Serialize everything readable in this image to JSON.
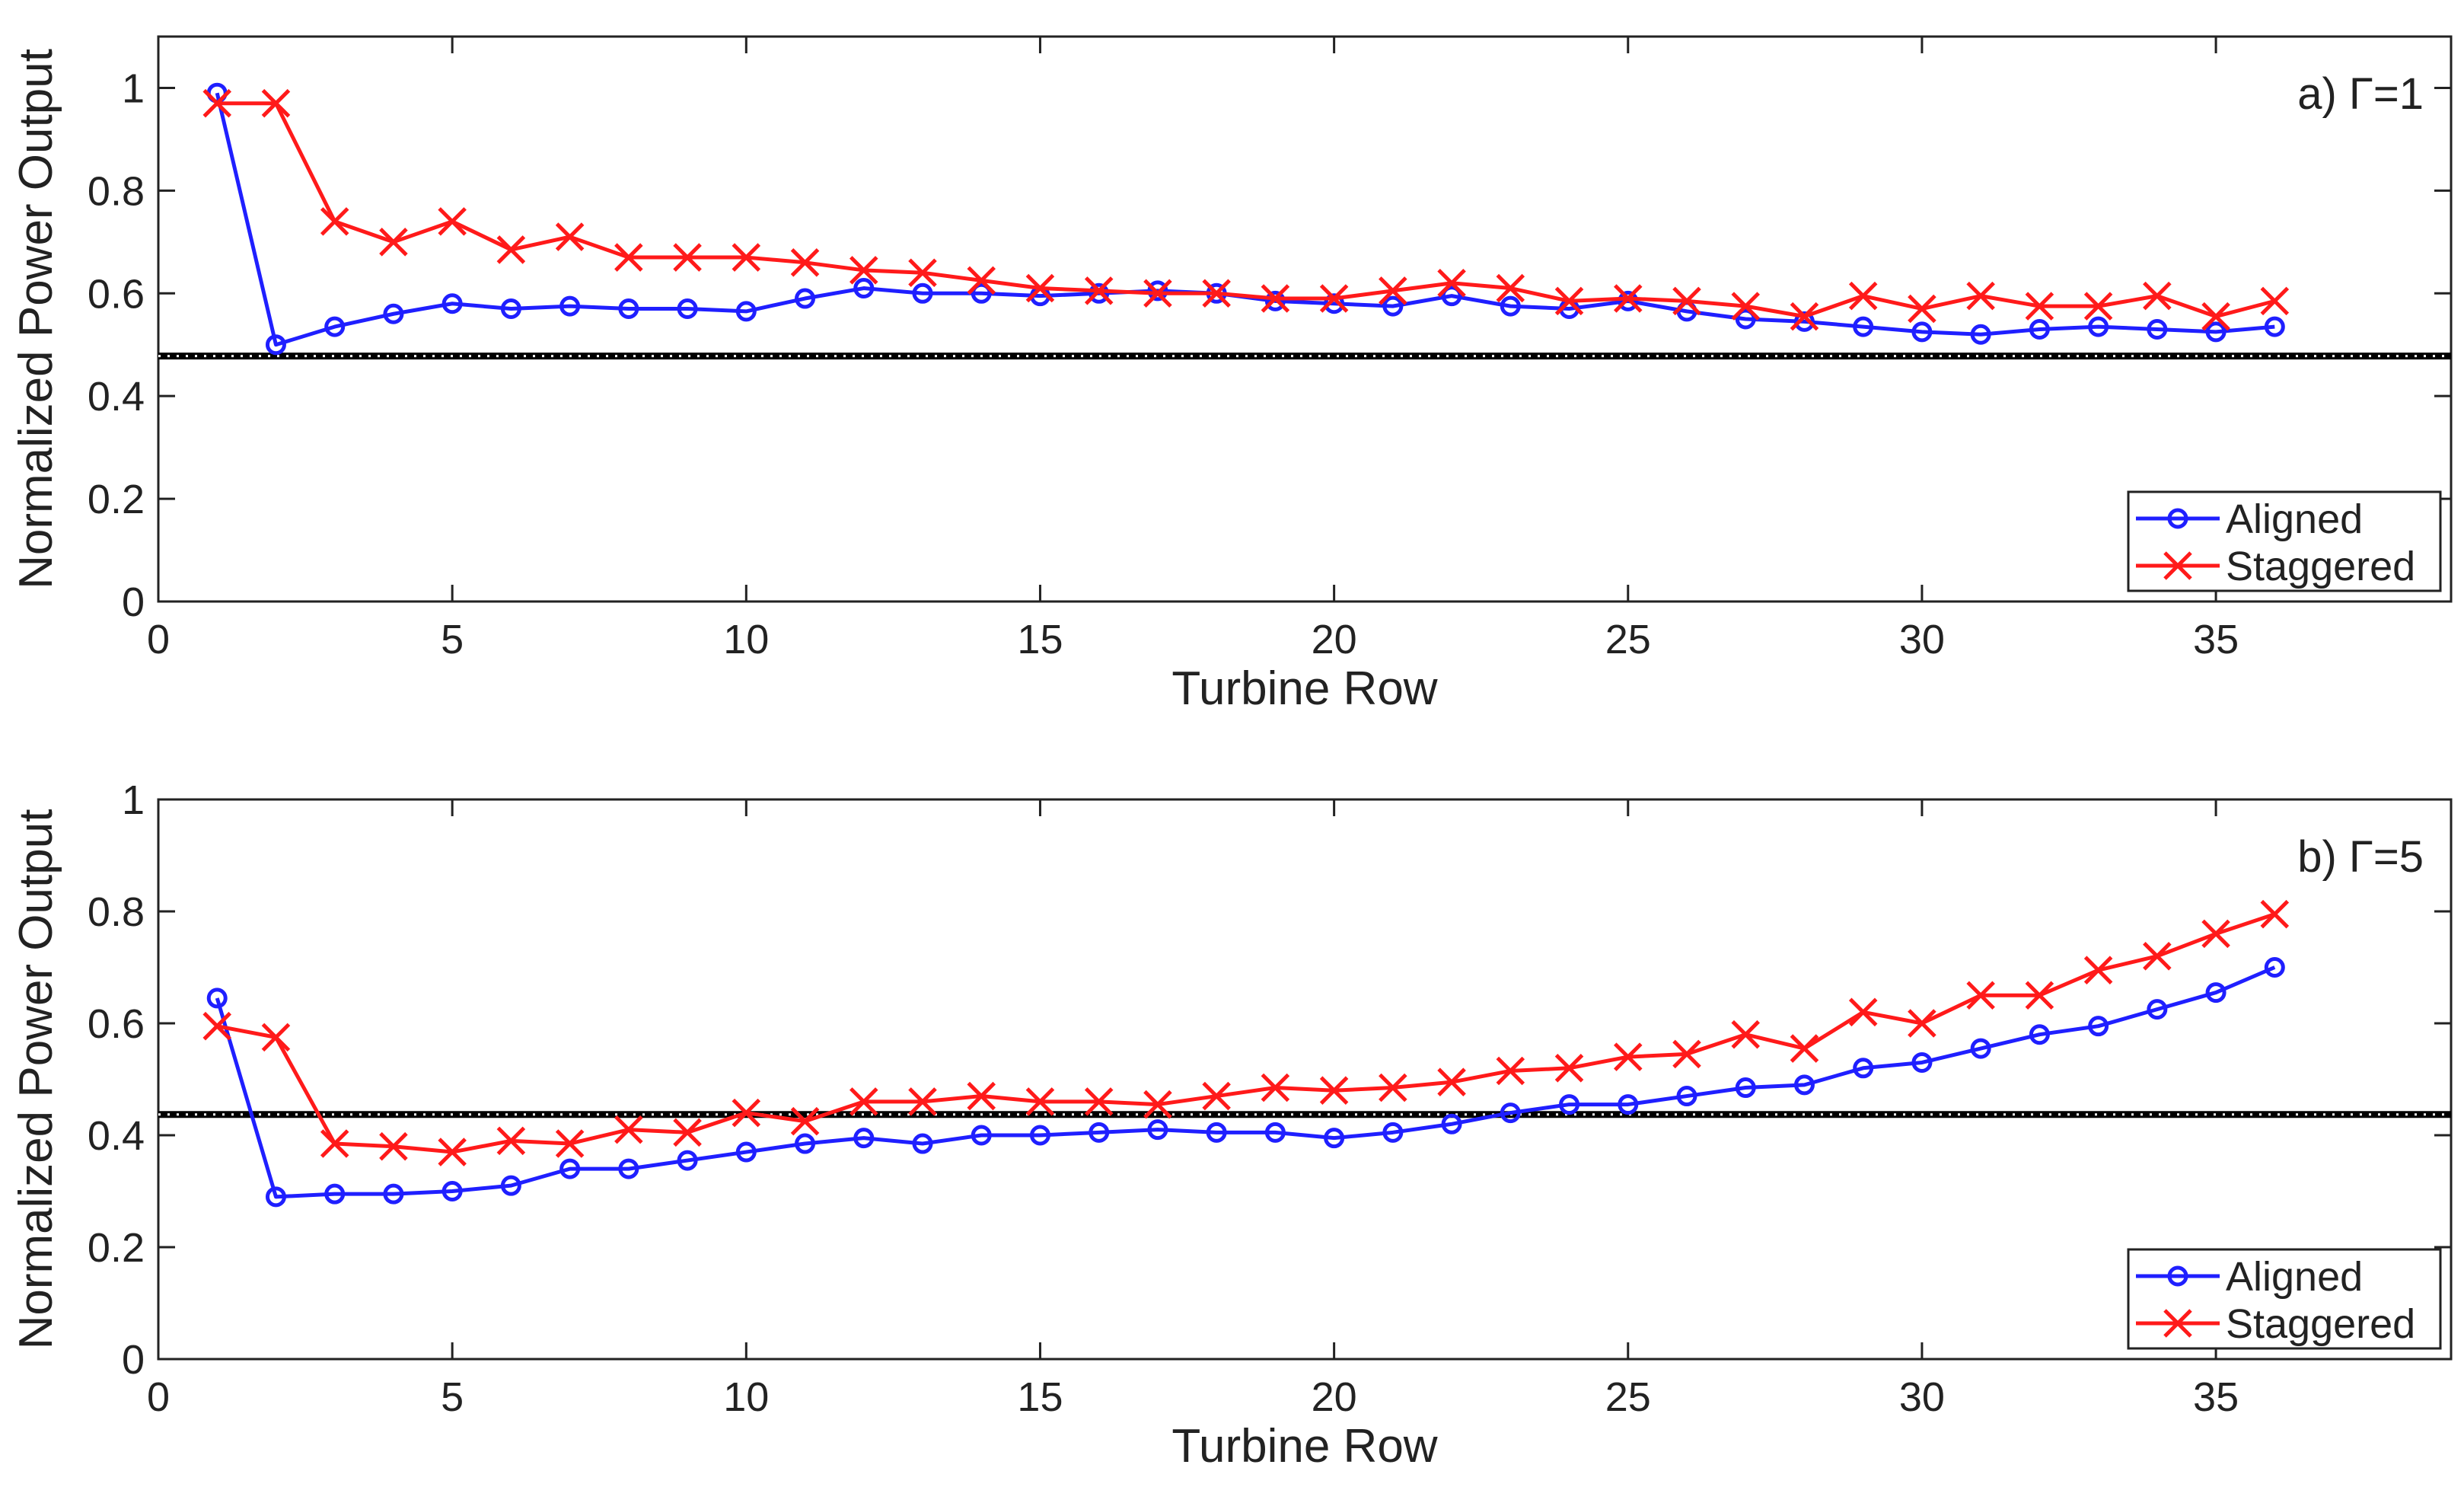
{
  "colors": {
    "aligned": "#1f1fff",
    "staggered": "#ff1a1a",
    "reference": "#000000",
    "axis": "#222222"
  },
  "chart_data": [
    {
      "type": "line",
      "annotation": "a) Γ=1",
      "xlabel": "Turbine Row",
      "ylabel": "Normalized Power Output",
      "xlim": [
        0,
        39
      ],
      "ylim": [
        0,
        1.1
      ],
      "xticks": [
        0,
        5,
        10,
        15,
        20,
        25,
        30,
        35
      ],
      "yticks": [
        0,
        0.2,
        0.4,
        0.6,
        0.8,
        1
      ],
      "tick_labels_y": [
        "0",
        "0.2",
        "0.4",
        "0.6",
        "0.8",
        "1"
      ],
      "tick_labels_x": [
        "0",
        "5",
        "10",
        "15",
        "20",
        "25",
        "30",
        "35"
      ],
      "reference_line": 0.478,
      "legend": {
        "position": "bottom-right",
        "entries": [
          "Aligned",
          "Staggered"
        ]
      },
      "x": [
        1,
        2,
        3,
        4,
        5,
        6,
        7,
        8,
        9,
        10,
        11,
        12,
        13,
        14,
        15,
        16,
        17,
        18,
        19,
        20,
        21,
        22,
        23,
        24,
        25,
        26,
        27,
        28,
        29,
        30,
        31,
        32,
        33,
        34,
        35,
        36
      ],
      "series": [
        {
          "name": "Aligned",
          "marker": "circle",
          "values": [
            0.99,
            0.5,
            0.535,
            0.56,
            0.58,
            0.57,
            0.575,
            0.57,
            0.57,
            0.565,
            0.59,
            0.61,
            0.6,
            0.6,
            0.595,
            0.6,
            0.605,
            0.6,
            0.585,
            0.58,
            0.575,
            0.595,
            0.575,
            0.57,
            0.585,
            0.565,
            0.55,
            0.545,
            0.535,
            0.525,
            0.52,
            0.53,
            0.535,
            0.53,
            0.525,
            0.535
          ]
        },
        {
          "name": "Staggered",
          "marker": "x",
          "values": [
            0.97,
            0.97,
            0.74,
            0.7,
            0.74,
            0.685,
            0.71,
            0.67,
            0.67,
            0.67,
            0.66,
            0.645,
            0.64,
            0.625,
            0.61,
            0.605,
            0.6,
            0.6,
            0.59,
            0.59,
            0.605,
            0.62,
            0.61,
            0.585,
            0.59,
            0.585,
            0.575,
            0.555,
            0.595,
            0.57,
            0.595,
            0.575,
            0.575,
            0.595,
            0.555,
            0.585
          ]
        }
      ]
    },
    {
      "type": "line",
      "annotation": "b) Γ=5",
      "xlabel": "Turbine Row",
      "ylabel": "Normalized Power Output",
      "xlim": [
        0,
        39
      ],
      "ylim": [
        0,
        1
      ],
      "xticks": [
        0,
        5,
        10,
        15,
        20,
        25,
        30,
        35
      ],
      "yticks": [
        0,
        0.2,
        0.4,
        0.6,
        0.8,
        1
      ],
      "tick_labels_y": [
        "0",
        "0.2",
        "0.4",
        "0.6",
        "0.8",
        "1"
      ],
      "tick_labels_x": [
        "0",
        "5",
        "10",
        "15",
        "20",
        "25",
        "30",
        "35"
      ],
      "reference_line": 0.437,
      "legend": {
        "position": "bottom-right",
        "entries": [
          "Aligned",
          "Staggered"
        ]
      },
      "x": [
        1,
        2,
        3,
        4,
        5,
        6,
        7,
        8,
        9,
        10,
        11,
        12,
        13,
        14,
        15,
        16,
        17,
        18,
        19,
        20,
        21,
        22,
        23,
        24,
        25,
        26,
        27,
        28,
        29,
        30,
        31,
        32,
        33,
        34,
        35,
        36
      ],
      "series": [
        {
          "name": "Aligned",
          "marker": "circle",
          "values": [
            0.645,
            0.29,
            0.295,
            0.295,
            0.3,
            0.31,
            0.34,
            0.34,
            0.355,
            0.37,
            0.385,
            0.395,
            0.385,
            0.4,
            0.4,
            0.405,
            0.41,
            0.405,
            0.405,
            0.395,
            0.405,
            0.42,
            0.44,
            0.455,
            0.455,
            0.47,
            0.485,
            0.49,
            0.52,
            0.53,
            0.555,
            0.58,
            0.595,
            0.625,
            0.655,
            0.7
          ]
        },
        {
          "name": "Staggered",
          "marker": "x",
          "values": [
            0.595,
            0.575,
            0.385,
            0.38,
            0.37,
            0.39,
            0.385,
            0.41,
            0.405,
            0.44,
            0.425,
            0.46,
            0.46,
            0.47,
            0.46,
            0.46,
            0.455,
            0.47,
            0.485,
            0.48,
            0.485,
            0.495,
            0.515,
            0.52,
            0.54,
            0.545,
            0.58,
            0.555,
            0.62,
            0.6,
            0.65,
            0.65,
            0.695,
            0.72,
            0.76,
            0.795
          ]
        }
      ]
    }
  ]
}
